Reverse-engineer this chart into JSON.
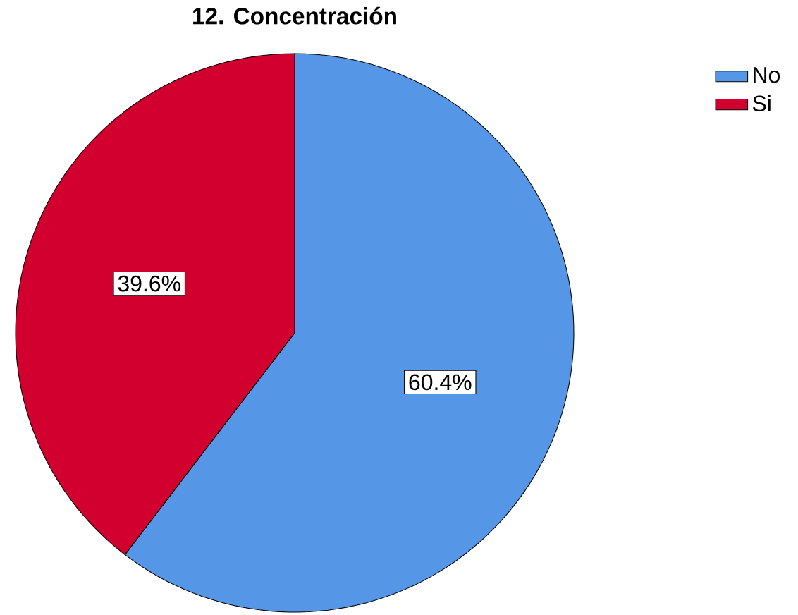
{
  "chart_data": {
    "type": "pie",
    "title": "12. Concentración",
    "categories": [
      "No",
      "Si"
    ],
    "values": [
      60.4,
      39.6
    ],
    "colors": [
      "#5596e6",
      "#d1002f"
    ],
    "value_labels": [
      "60.4%",
      "39.6%"
    ],
    "legend": "top right"
  }
}
